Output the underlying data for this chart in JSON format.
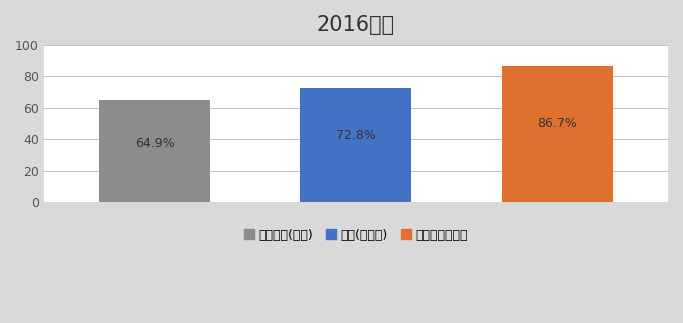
{
  "title": "2016년도",
  "categories": [
    "대학평균(전국)",
    "공대(군산대)",
    "컴퓨터정보공학"
  ],
  "values": [
    64.9,
    72.8,
    86.7
  ],
  "labels": [
    "64.9%",
    "72.8%",
    "86.7%"
  ],
  "bar_colors": [
    "#8c8c8c",
    "#4472c4",
    "#e07030"
  ],
  "ylim": [
    0,
    100
  ],
  "yticks": [
    0,
    20,
    40,
    60,
    80,
    100
  ],
  "title_fontsize": 15,
  "label_fontsize": 9,
  "legend_fontsize": 9,
  "background_color": "#d9d9d9",
  "plot_background": "#ffffff",
  "grid_color": "#c0c0c0"
}
